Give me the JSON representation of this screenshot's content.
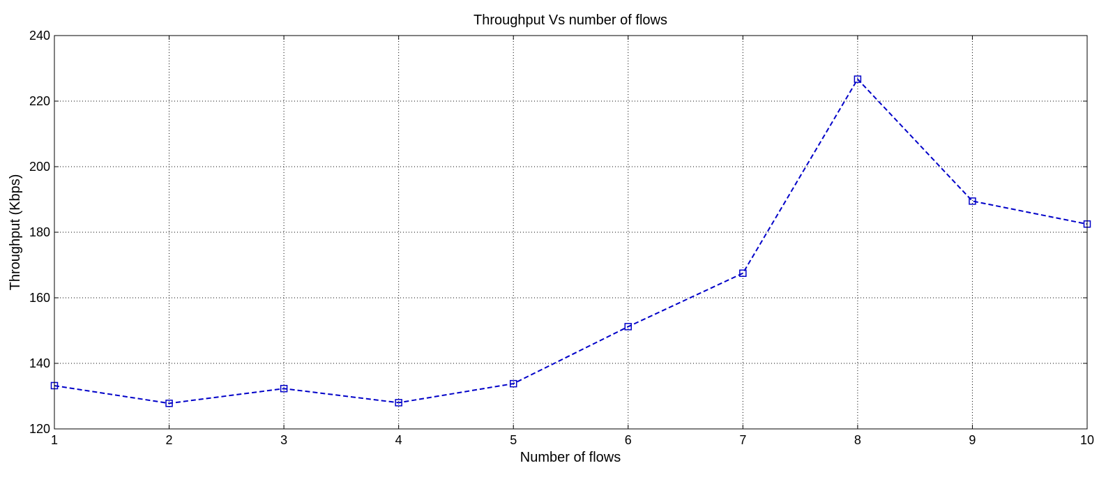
{
  "chart_data": {
    "type": "line",
    "title": "Throughput Vs number of flows",
    "xlabel": "Number of flows",
    "ylabel": "Throughput (Kbps)",
    "x": [
      1,
      2,
      3,
      4,
      5,
      6,
      7,
      8,
      9,
      10
    ],
    "series": [
      {
        "values": [
          133.2,
          127.8,
          132.3,
          128.0,
          133.8,
          151.2,
          167.5,
          226.7,
          189.5,
          182.5
        ]
      }
    ],
    "xlim": [
      1,
      10
    ],
    "ylim": [
      120,
      240
    ],
    "xticks": [
      "1",
      "2",
      "3",
      "4",
      "5",
      "6",
      "7",
      "8",
      "9",
      "10"
    ],
    "yticks": [
      "120",
      "140",
      "160",
      "180",
      "200",
      "220",
      "240"
    ],
    "grid": true,
    "line_style": "dashed",
    "marker": "square",
    "line_color": "#0000c8"
  }
}
